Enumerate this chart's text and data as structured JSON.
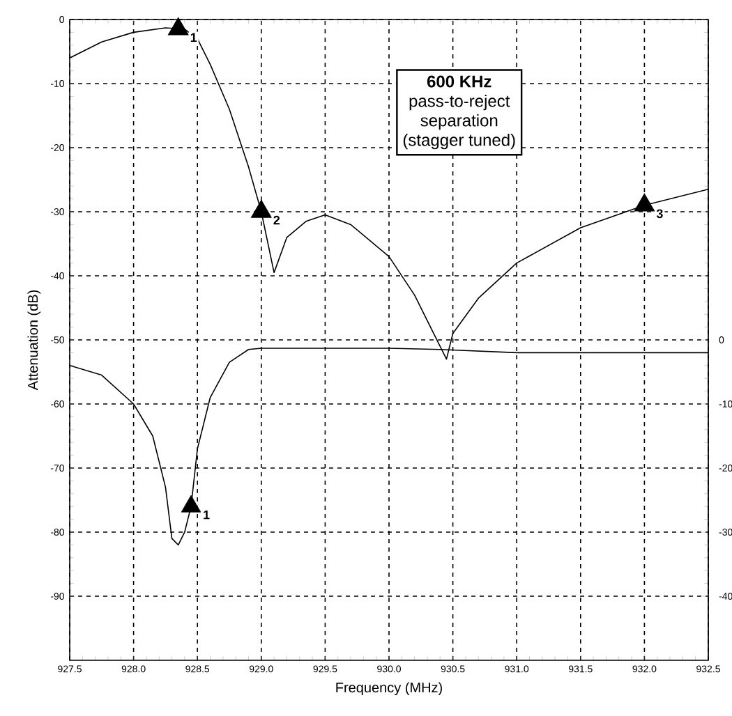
{
  "chart_data": {
    "type": "line",
    "xlabel": "Frequency (MHz)",
    "ylabel": "Attenuation (dB)",
    "xlim": [
      927.5,
      932.5
    ],
    "xticks": [
      {
        "value": 927.5,
        "label": "927.5"
      },
      {
        "value": 928,
        "label": "928.0"
      },
      {
        "value": 928.5,
        "label": "928.5"
      },
      {
        "value": 929,
        "label": "929.0"
      },
      {
        "value": 929.5,
        "label": "929.5"
      },
      {
        "value": 930,
        "label": "930.0"
      },
      {
        "value": 930.5,
        "label": "930.5"
      },
      {
        "value": 931,
        "label": "931.0"
      },
      {
        "value": 931.5,
        "label": "931.5"
      },
      {
        "value": 932,
        "label": "932.0"
      },
      {
        "value": 932.5,
        "label": "932.5"
      }
    ],
    "ylim": [
      -100,
      0
    ],
    "yticks": [
      0,
      -10,
      -20,
      -30,
      -40,
      -50,
      -60,
      -70,
      -80,
      -90
    ],
    "y2lim": [
      -50,
      50
    ],
    "y2ticks": [
      0,
      -10,
      -20,
      -30,
      -40
    ],
    "grid": true,
    "annotations": [
      "600 KHz",
      "pass-to-reject",
      "separation",
      "(stagger tuned)",
      {
        "text": "1",
        "x": 928.35,
        "y": -1.5
      },
      {
        "text": "2",
        "x": 929.0,
        "y": -30
      },
      {
        "text": "3",
        "x": 932.0,
        "y": -29
      },
      {
        "text": "1",
        "x": 928.45,
        "y": -76
      }
    ],
    "series": [
      {
        "color": "#000000",
        "marker": "none",
        "x": [
          927.5,
          927.75,
          928.0,
          928.25,
          928.4,
          928.5,
          928.6,
          928.75,
          928.9,
          929.0,
          929.1,
          929.2,
          929.35,
          929.5,
          929.7,
          930.0,
          930.2,
          930.35,
          930.45,
          930.5,
          930.7,
          931.0,
          931.5,
          932.0,
          932.5
        ],
        "values": [
          -6,
          -3.5,
          -2,
          -1.3,
          -1.5,
          -3,
          -7,
          -14,
          -23,
          -30,
          -39.5,
          -34,
          -31.5,
          -30.5,
          -32,
          -37,
          -43,
          -49,
          -53,
          -49,
          -43.5,
          -38,
          -32.5,
          -29,
          -26.5
        ]
      },
      {
        "axis": "y2",
        "color": "#000000",
        "marker": "none",
        "x": [
          927.5,
          927.75,
          928.0,
          928.15,
          928.25,
          928.3,
          928.35,
          928.4,
          928.45,
          928.5,
          928.6,
          928.75,
          928.9,
          929.0,
          930.0,
          930.4,
          931.0,
          932.5
        ],
        "values": [
          -4,
          -5.5,
          -10,
          -15,
          -23,
          -31,
          -32,
          -30,
          -26,
          -17,
          -9,
          -3.5,
          -1.5,
          -1.3,
          -1.3,
          -1.5,
          -2,
          -2
        ]
      },
      {
        "type": "scatter",
        "color": "#000000",
        "marker": "triangle",
        "x": [
          928.35,
          929.0,
          932.0
        ],
        "values": [
          -1.5,
          -30,
          -29
        ]
      },
      {
        "type": "scatter",
        "axis": "y2",
        "color": "#000000",
        "marker": "triangle",
        "x": [
          928.45
        ],
        "values": [
          -26
        ]
      }
    ]
  }
}
